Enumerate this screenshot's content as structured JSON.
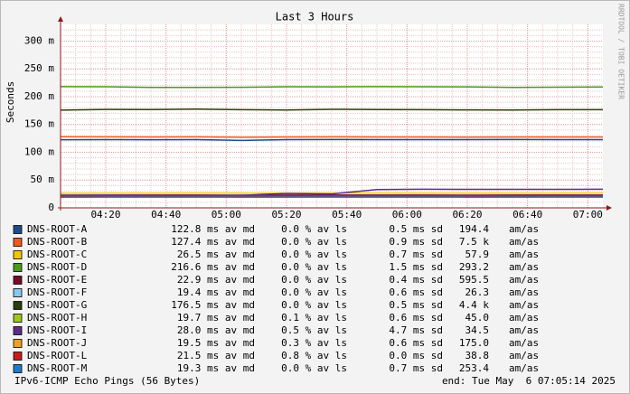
{
  "chart_data": {
    "type": "line",
    "title": "Last 3 Hours",
    "ylabel": "Seconds",
    "watermark": "RRDTOOL / TOBI OETIKER",
    "footer": "IPv6-ICMP Echo Pings (56 Bytes)",
    "end_time": "end: Tue May  6 07:05:14 2025",
    "grid": true,
    "xlim": [
      245,
      425
    ],
    "xticks": [
      {
        "value": 260,
        "label": "04:20"
      },
      {
        "value": 280,
        "label": "04:40"
      },
      {
        "value": 300,
        "label": "05:00"
      },
      {
        "value": 320,
        "label": "05:20"
      },
      {
        "value": 340,
        "label": "05:40"
      },
      {
        "value": 360,
        "label": "06:00"
      },
      {
        "value": 380,
        "label": "06:20"
      },
      {
        "value": 400,
        "label": "06:40"
      },
      {
        "value": 420,
        "label": "07:00"
      }
    ],
    "ylim": [
      0,
      0.33
    ],
    "yticks": [
      0,
      {
        "value": 0.05,
        "label": "50 m"
      },
      {
        "value": 0.1,
        "label": "100 m"
      },
      {
        "value": 0.15,
        "label": "150 m"
      },
      {
        "value": 0.2,
        "label": "200 m"
      },
      {
        "value": 0.25,
        "label": "250 m"
      },
      {
        "value": 0.3,
        "label": "300 m"
      }
    ],
    "x": [
      245,
      260,
      275,
      290,
      305,
      320,
      335,
      350,
      365,
      380,
      395,
      410,
      425
    ],
    "series": [
      {
        "name": "DNS-ROOT-A",
        "color": "#1e4b8c",
        "values": [
          0.1225,
          0.1228,
          0.1226,
          0.1228,
          0.1212,
          0.1228,
          0.1229,
          0.1228,
          0.1228,
          0.1228,
          0.1229,
          0.1228,
          0.1228
        ],
        "stats": [
          "122.8 ms av md",
          "0.0 % av ls",
          "0.5 ms sd",
          "194.4",
          "am/as"
        ]
      },
      {
        "name": "DNS-ROOT-B",
        "color": "#f0581c",
        "values": [
          0.1278,
          0.1276,
          0.1275,
          0.1276,
          0.127,
          0.1274,
          0.1276,
          0.1275,
          0.1274,
          0.1272,
          0.1274,
          0.1274,
          0.1274
        ],
        "stats": [
          "127.4 ms av md",
          "0.0 % av ls",
          "0.9 ms sd",
          "7.5 k",
          "am/as"
        ]
      },
      {
        "name": "DNS-ROOT-C",
        "color": "#f0c800",
        "values": [
          0.0262,
          0.0265,
          0.0264,
          0.0266,
          0.0265,
          0.0264,
          0.0265,
          0.0266,
          0.0265,
          0.0265,
          0.0264,
          0.0265,
          0.0266
        ],
        "stats": [
          "26.5 ms av md",
          "0.0 % av ls",
          "0.7 ms sd",
          "57.9",
          "am/as"
        ]
      },
      {
        "name": "DNS-ROOT-D",
        "color": "#4c9a1c",
        "values": [
          0.218,
          0.2179,
          0.2166,
          0.2166,
          0.2168,
          0.2178,
          0.2177,
          0.218,
          0.2178,
          0.2176,
          0.2166,
          0.217,
          0.2175
        ],
        "stats": [
          "216.6 ms av md",
          "0.0 % av ls",
          "1.5 ms sd",
          "293.2",
          "am/as"
        ]
      },
      {
        "name": "DNS-ROOT-E",
        "color": "#7a0a2a",
        "values": [
          0.0228,
          0.0229,
          0.023,
          0.0229,
          0.0228,
          0.0229,
          0.023,
          0.0229,
          0.0229,
          0.0228,
          0.0229,
          0.023,
          0.0229
        ],
        "stats": [
          "22.9 ms av md",
          "0.0 % av ls",
          "0.4 ms sd",
          "595.5",
          "am/as"
        ]
      },
      {
        "name": "DNS-ROOT-F",
        "color": "#88c8f0",
        "values": [
          0.0193,
          0.0194,
          0.0195,
          0.0194,
          0.0193,
          0.0194,
          0.0195,
          0.0194,
          0.0194,
          0.0193,
          0.0194,
          0.0195,
          0.0194
        ],
        "stats": [
          "19.4 ms av md",
          "0.0 % av ls",
          "0.6 ms sd",
          "26.3",
          "am/as"
        ]
      },
      {
        "name": "DNS-ROOT-G",
        "color": "#2c3c0c",
        "values": [
          0.1758,
          0.177,
          0.1768,
          0.1775,
          0.1765,
          0.176,
          0.1772,
          0.1768,
          0.1765,
          0.1762,
          0.176,
          0.1765,
          0.1765
        ],
        "stats": [
          "176.5 ms av md",
          "0.0 % av ls",
          "0.5 ms sd",
          "4.4 k",
          "am/as"
        ]
      },
      {
        "name": "DNS-ROOT-H",
        "color": "#9cc81c",
        "values": [
          0.0196,
          0.0197,
          0.0198,
          0.0197,
          0.0196,
          0.0197,
          0.0198,
          0.0197,
          0.0197,
          0.0196,
          0.0197,
          0.0198,
          0.0197
        ],
        "stats": [
          "19.7 ms av md",
          "0.1 % av ls",
          "0.6 ms sd",
          "45.0",
          "am/as"
        ]
      },
      {
        "name": "DNS-ROOT-I",
        "color": "#5c2c8c",
        "values": [
          0.022,
          0.0222,
          0.022,
          0.0218,
          0.0222,
          0.026,
          0.025,
          0.033,
          0.0335,
          0.0334,
          0.0334,
          0.0334,
          0.0335
        ],
        "stats": [
          "28.0 ms av md",
          "0.5 % av ls",
          "4.7 ms sd",
          "34.5",
          "am/as"
        ]
      },
      {
        "name": "DNS-ROOT-J",
        "color": "#f0a020",
        "values": [
          0.0194,
          0.0195,
          0.0196,
          0.0195,
          0.0194,
          0.0195,
          0.0196,
          0.0195,
          0.0195,
          0.0194,
          0.0195,
          0.0196,
          0.0195
        ],
        "stats": [
          "19.5 ms av md",
          "0.3 % av ls",
          "0.6 ms sd",
          "175.0",
          "am/as"
        ]
      },
      {
        "name": "DNS-ROOT-L",
        "color": "#c81c1c",
        "values": [
          0.0214,
          0.0215,
          0.0216,
          0.0215,
          0.0214,
          0.0215,
          0.0216,
          0.0215,
          0.0215,
          0.0214,
          0.0215,
          0.0216,
          0.0215
        ],
        "stats": [
          "21.5 ms av md",
          "0.8 % av ls",
          "0.0 ms sd",
          "38.8",
          "am/as"
        ]
      },
      {
        "name": "DNS-ROOT-M",
        "color": "#1c7ccc",
        "values": [
          0.0192,
          0.0193,
          0.0194,
          0.0193,
          0.0192,
          0.0193,
          0.0194,
          0.0193,
          0.0193,
          0.0192,
          0.0193,
          0.0194,
          0.0193
        ],
        "stats": [
          "19.3 ms av md",
          "0.0 % av ls",
          "0.7 ms sd",
          "253.4",
          "am/as"
        ]
      }
    ]
  }
}
